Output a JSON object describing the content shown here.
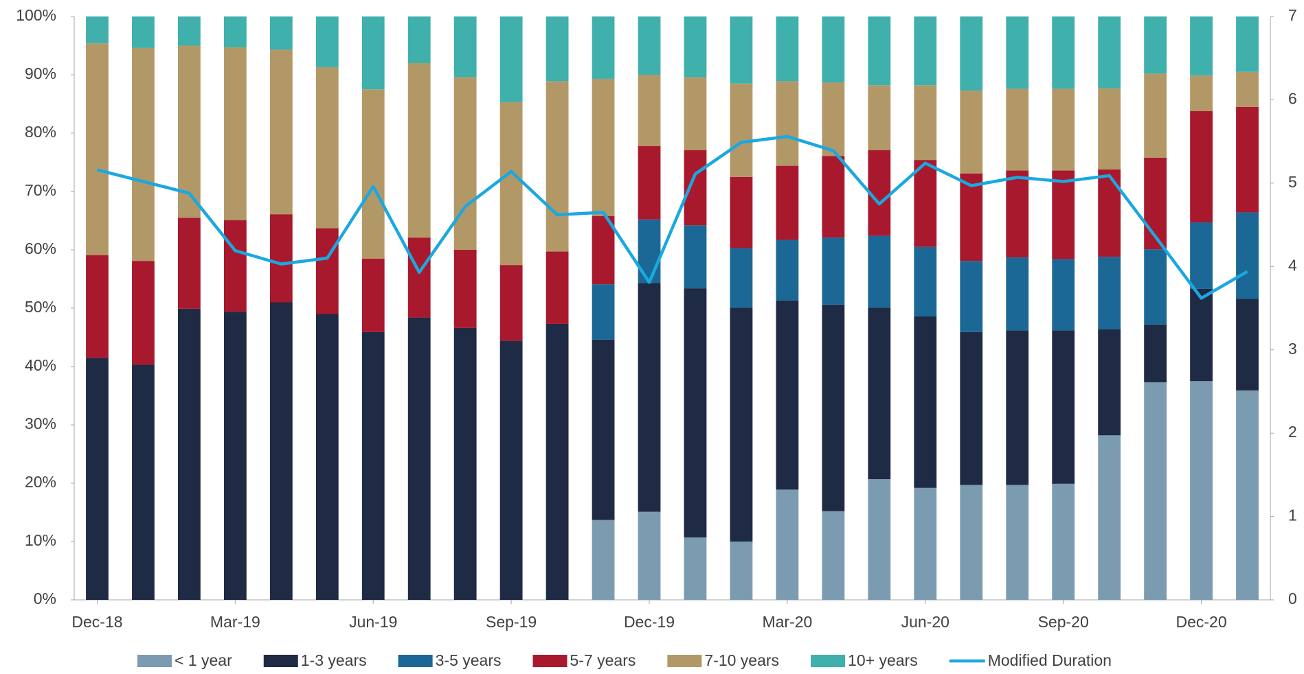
{
  "chart_data": {
    "type": "stacked_bar_line",
    "categories": [
      "Dec-18",
      null,
      null,
      "Mar-19",
      null,
      null,
      "Jun-19",
      null,
      null,
      "Sep-19",
      null,
      null,
      "Dec-19",
      null,
      null,
      "Mar-20",
      null,
      null,
      "Jun-20",
      null,
      null,
      "Sep-20",
      null,
      null,
      "Dec-20",
      null
    ],
    "series": [
      {
        "name": "< 1 year",
        "color": "#7b9bb0",
        "values": [
          0,
          0,
          0,
          0,
          0,
          0,
          0,
          0,
          0,
          0,
          0,
          13.7,
          15.1,
          10.7,
          10.0,
          18.9,
          15.2,
          20.7,
          19.2,
          19.7,
          19.7,
          19.9,
          28.2,
          37.3,
          37.5,
          35.9
        ]
      },
      {
        "name": "1-3 years",
        "color": "#1f2a44",
        "values": [
          41.5,
          40.3,
          49.9,
          49.4,
          51.0,
          49.0,
          45.9,
          48.4,
          46.6,
          44.4,
          47.3,
          30.9,
          39.2,
          42.7,
          40.1,
          32.4,
          35.4,
          29.4,
          29.4,
          26.2,
          26.5,
          26.3,
          18.2,
          9.9,
          15.8,
          15.7
        ]
      },
      {
        "name": "3-5 years",
        "color": "#1b6796",
        "values": [
          0,
          0,
          0,
          0,
          0,
          0,
          0,
          0,
          0,
          0,
          0,
          9.5,
          10.9,
          10.8,
          10.2,
          10.4,
          11.5,
          12.3,
          11.9,
          12.2,
          12.5,
          12.2,
          12.4,
          12.9,
          11.4,
          14.8
        ]
      },
      {
        "name": "5-7 years",
        "color": "#a8192e",
        "values": [
          17.6,
          17.8,
          15.6,
          15.7,
          15.1,
          14.7,
          12.6,
          13.7,
          13.4,
          13.0,
          12.4,
          11.7,
          12.6,
          12.9,
          12.2,
          12.7,
          14.0,
          14.7,
          14.9,
          15.0,
          14.9,
          15.2,
          15.0,
          15.7,
          19.1,
          18.1
        ]
      },
      {
        "name": "7-10 years",
        "color": "#b39867",
        "values": [
          36.3,
          36.5,
          29.5,
          29.6,
          28.2,
          27.6,
          29.0,
          29.9,
          29.6,
          27.9,
          29.2,
          23.5,
          12.2,
          12.5,
          16.0,
          14.5,
          12.6,
          11.1,
          12.8,
          14.2,
          14.0,
          14.0,
          13.9,
          14.4,
          6.1,
          6.0
        ]
      },
      {
        "name": "10+ years",
        "color": "#3fb0ac",
        "values": [
          4.6,
          5.4,
          5.0,
          5.3,
          5.7,
          8.7,
          12.5,
          8.0,
          10.4,
          14.7,
          11.1,
          10.7,
          10.0,
          10.4,
          11.5,
          11.1,
          11.3,
          11.8,
          11.8,
          12.7,
          12.4,
          12.4,
          12.3,
          9.8,
          10.1,
          9.5
        ]
      },
      {
        "name": "Modified Duration",
        "color": "#1aa8e0",
        "axis": "y2",
        "values": [
          5.16,
          5.02,
          4.88,
          4.19,
          4.03,
          4.1,
          4.96,
          3.93,
          4.72,
          5.14,
          4.62,
          4.65,
          3.81,
          5.11,
          5.49,
          5.56,
          5.39,
          4.75,
          5.24,
          4.97,
          5.07,
          5.02,
          5.09,
          4.36,
          3.62,
          3.94
        ]
      }
    ],
    "ylim": [
      0,
      100
    ],
    "yticks": [
      {
        "value": 0,
        "label": "0%"
      },
      {
        "value": 10,
        "label": "10%"
      },
      {
        "value": 20,
        "label": "20%"
      },
      {
        "value": 30,
        "label": "30%"
      },
      {
        "value": 40,
        "label": "40%"
      },
      {
        "value": 50,
        "label": "50%"
      },
      {
        "value": 60,
        "label": "60%"
      },
      {
        "value": 70,
        "label": "70%"
      },
      {
        "value": 80,
        "label": "80%"
      },
      {
        "value": 90,
        "label": "90%"
      },
      {
        "value": 100,
        "label": "100%"
      }
    ],
    "y2lim": [
      0,
      7
    ],
    "y2ticks": [
      0,
      1,
      2,
      3,
      4,
      5,
      6,
      7
    ],
    "legend": "bottom"
  }
}
